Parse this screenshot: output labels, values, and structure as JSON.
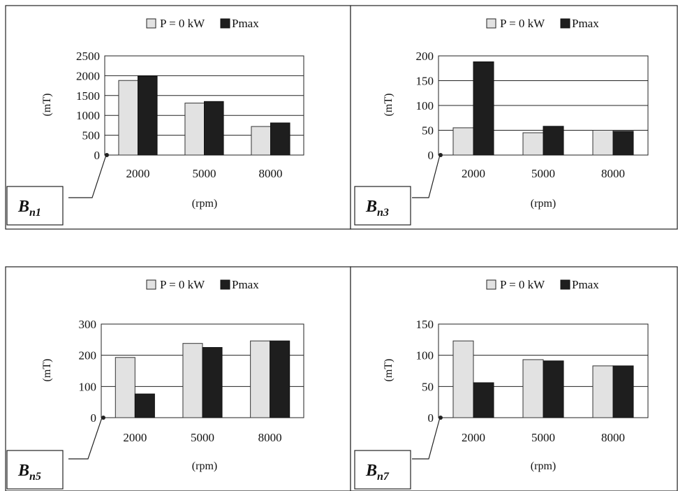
{
  "chart_data": [
    {
      "type": "bar",
      "panel_label": {
        "main": "B",
        "sub": "n1"
      },
      "categories": [
        "2000",
        "5000",
        "8000"
      ],
      "series": [
        {
          "name": "P = 0 kW",
          "values": [
            1880,
            1310,
            720
          ]
        },
        {
          "name": "Pmax",
          "values": [
            1990,
            1350,
            810
          ]
        }
      ],
      "ylabel": "(mT)",
      "xlabel": "(rpm)",
      "ylim": [
        0,
        2500
      ],
      "yticks": [
        0,
        500,
        1000,
        1500,
        2000,
        2500
      ],
      "grid": true,
      "legend": "top"
    },
    {
      "type": "bar",
      "panel_label": {
        "main": "B",
        "sub": "n3"
      },
      "categories": [
        "2000",
        "5000",
        "8000"
      ],
      "series": [
        {
          "name": "P = 0 kW",
          "values": [
            55,
            45,
            50
          ]
        },
        {
          "name": "Pmax",
          "values": [
            188,
            58,
            48
          ]
        }
      ],
      "ylabel": "(mT)",
      "xlabel": "(rpm)",
      "ylim": [
        0,
        200
      ],
      "yticks": [
        0,
        50,
        100,
        150,
        200
      ],
      "grid": true,
      "legend": "top"
    },
    {
      "type": "bar",
      "panel_label": {
        "main": "B",
        "sub": "n5"
      },
      "categories": [
        "2000",
        "5000",
        "8000"
      ],
      "series": [
        {
          "name": "P = 0 kW",
          "values": [
            193,
            238,
            246
          ]
        },
        {
          "name": "Pmax",
          "values": [
            76,
            225,
            246
          ]
        }
      ],
      "ylabel": "(mT)",
      "xlabel": "(rpm)",
      "ylim": [
        0,
        300
      ],
      "yticks": [
        0,
        100,
        200,
        300
      ],
      "grid": true,
      "legend": "top"
    },
    {
      "type": "bar",
      "panel_label": {
        "main": "B",
        "sub": "n7"
      },
      "categories": [
        "2000",
        "5000",
        "8000"
      ],
      "series": [
        {
          "name": "P = 0 kW",
          "values": [
            123,
            93,
            83
          ]
        },
        {
          "name": "Pmax",
          "values": [
            56,
            91,
            83
          ]
        }
      ],
      "ylabel": "(mT)",
      "xlabel": "(rpm)",
      "ylim": [
        0,
        150
      ],
      "yticks": [
        0,
        50,
        100,
        150
      ],
      "grid": true,
      "legend": "top"
    }
  ],
  "colors": {
    "series_light": "#e2e2e2",
    "series_dark": "#1e1e1e"
  }
}
